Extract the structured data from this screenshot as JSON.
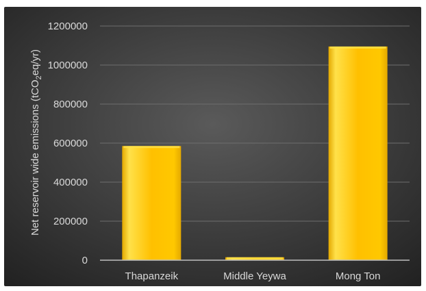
{
  "chart_data": {
    "type": "bar",
    "title": "",
    "xlabel": "",
    "ylabel": {
      "main": "Net reservoir wide emissions (tCO",
      "subscript": "2",
      "suffix": "eq/yr)"
    },
    "categories": [
      "Thapanzeik",
      "Middle Yeywa",
      "Mong Ton"
    ],
    "values": [
      585000,
      15000,
      1095000
    ],
    "ylim": [
      0,
      1200000
    ],
    "yticks": [
      0,
      200000,
      400000,
      600000,
      800000,
      1000000,
      1200000
    ],
    "ytick_labels": [
      "0",
      "200000",
      "400000",
      "600000",
      "800000",
      "1000000",
      "1200000"
    ],
    "grid": true,
    "legend": "none"
  },
  "colors": {
    "background_center": "#5a5a5a",
    "background_edge": "#222222",
    "bar_light": "#ffe14a",
    "bar_main": "#ffc000",
    "bar_dark": "#e3a800",
    "gridline": "#6e6e6e",
    "axis_line": "#bfbfbf",
    "text": "#d9d9d9"
  }
}
